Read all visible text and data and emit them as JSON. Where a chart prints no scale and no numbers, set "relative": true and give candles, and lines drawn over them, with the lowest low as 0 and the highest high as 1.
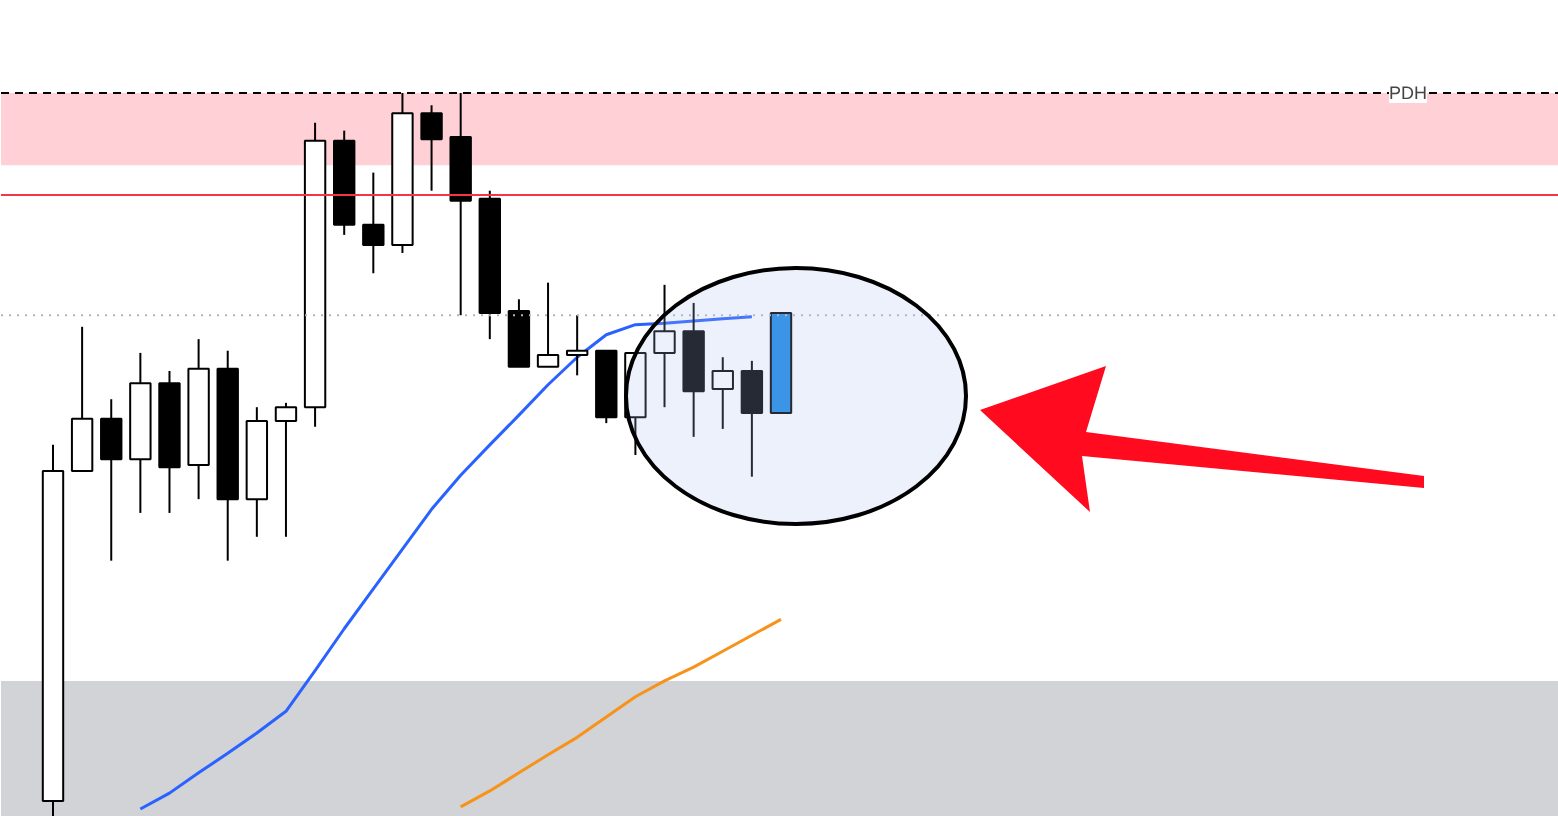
{
  "chart_data": {
    "type": "candlestick",
    "relative": true,
    "categories": [
      null,
      null,
      null,
      null,
      null,
      null,
      null,
      null,
      null,
      null,
      null,
      null,
      null,
      null,
      null,
      null,
      null,
      null,
      null,
      null,
      null,
      null,
      null,
      null,
      null,
      null
    ],
    "ohlc": [
      [
        0.022,
        0.514,
        0,
        0.478
      ],
      [
        0.478,
        0.677,
        0.478,
        0.55
      ],
      [
        0.55,
        0.577,
        0.354,
        0.494
      ],
      [
        0.494,
        0.641,
        0.42,
        0.599
      ],
      [
        0.599,
        0.616,
        0.42,
        0.483
      ],
      [
        0.486,
        0.66,
        0.439,
        0.619
      ],
      [
        0.619,
        0.644,
        0.354,
        0.439
      ],
      [
        0.439,
        0.566,
        0.387,
        0.547
      ],
      [
        0.547,
        0.572,
        0.387,
        0.566
      ],
      [
        0.566,
        0.959,
        0.539,
        0.934
      ],
      [
        0.934,
        0.948,
        0.804,
        0.818
      ],
      [
        0.818,
        0.89,
        0.751,
        0.79
      ],
      [
        0.79,
        1.0,
        0.779,
        0.972
      ],
      [
        0.972,
        0.983,
        0.865,
        0.936
      ],
      [
        0.939,
        1.0,
        0.693,
        0.851
      ],
      [
        0.854,
        0.865,
        0.66,
        0.696
      ],
      [
        0.699,
        0.715,
        0.622,
        0.622
      ],
      [
        0.622,
        0.738,
        0.622,
        0.638
      ],
      [
        0.638,
        0.693,
        0.61,
        0.644
      ],
      [
        0.644,
        0.644,
        0.544,
        0.552
      ],
      [
        0.552,
        0.641,
        0.5,
        0.641
      ],
      [
        0.641,
        0.735,
        0.566,
        0.671
      ],
      [
        0.671,
        0.71,
        0.525,
        0.588
      ],
      [
        0.591,
        0.635,
        0.536,
        0.616
      ],
      [
        0.616,
        0.63,
        0.47,
        0.558
      ],
      [
        0.558,
        0.696,
        0.558,
        0.696
      ]
    ],
    "colors": [
      "#ffffff",
      "#ffffff",
      "#000000",
      "#ffffff",
      "#000000",
      "#ffffff",
      "#000000",
      "#ffffff",
      "#ffffff",
      "#ffffff",
      "#000000",
      "#000000",
      "#ffffff",
      "#000000",
      "#000000",
      "#000000",
      "#000000",
      "#ffffff",
      "#ffffff",
      "#000000",
      "#ffffff",
      "#ffffff",
      "#000000",
      "#ffffff",
      "#000000",
      "#1e88e5"
    ],
    "series": [
      {
        "type": "line",
        "color": "#2962ff",
        "values": [
          null,
          null,
          null,
          0.011,
          0.033,
          0.061,
          0.088,
          0.116,
          0.146,
          0.202,
          0.26,
          0.315,
          0.37,
          0.425,
          0.472,
          0.514,
          0.555,
          0.597,
          0.635,
          0.666,
          0.68,
          0.682,
          0.685,
          0.688,
          0.691,
          null
        ]
      },
      {
        "type": "line",
        "color": "#f7931a",
        "values": [
          null,
          null,
          null,
          null,
          null,
          null,
          null,
          null,
          null,
          null,
          null,
          null,
          null,
          null,
          0.014,
          0.036,
          0.061,
          0.086,
          0.11,
          0.138,
          0.166,
          0.188,
          0.207,
          0.229,
          0.251,
          0.273
        ]
      }
    ],
    "ref_lines": [
      {
        "axis": "y",
        "value": 1.0,
        "label": "PDH",
        "color": "#000000",
        "line_style": "dashed"
      },
      {
        "axis": "y",
        "value": 0.859,
        "label": null,
        "color": "#f23645",
        "line_style": "solid"
      },
      {
        "axis": "y",
        "value": 0.693,
        "label": null,
        "color": "#b2b5be",
        "line_style": "dotted"
      }
    ],
    "bands": [
      {
        "axis": "y",
        "from": 0.9,
        "to": 1.0,
        "label": null,
        "color": "#ffd1d6"
      },
      {
        "axis": "y",
        "from": 0,
        "to": 0.188,
        "label": null,
        "color": "#d1d3d6"
      }
    ],
    "grid": false,
    "tick_labels": false
  }
}
